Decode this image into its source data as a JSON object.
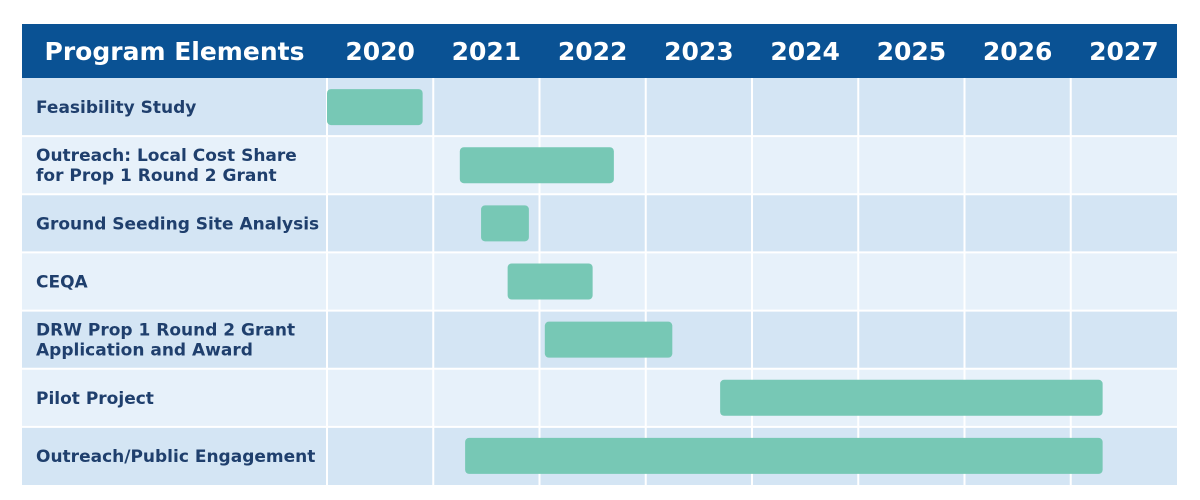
{
  "chart_data": {
    "type": "gantt",
    "header_label": "Program Elements",
    "years": [
      "2020",
      "2021",
      "2022",
      "2023",
      "2024",
      "2025",
      "2026",
      "2027"
    ],
    "tasks": [
      {
        "label_lines": [
          "Feasibility Study"
        ],
        "start": 2020.0,
        "end": 2020.9
      },
      {
        "label_lines": [
          "Outreach: Local Cost Share",
          "for Prop 1 Round 2 Grant"
        ],
        "start": 2021.25,
        "end": 2022.7
      },
      {
        "label_lines": [
          "Ground Seeding Site Analysis"
        ],
        "start": 2021.45,
        "end": 2021.9
      },
      {
        "label_lines": [
          "CEQA"
        ],
        "start": 2021.7,
        "end": 2022.5
      },
      {
        "label_lines": [
          "DRW Prop 1 Round 2 Grant",
          "Application and Award"
        ],
        "start": 2022.05,
        "end": 2023.25
      },
      {
        "label_lines": [
          "Pilot Project"
        ],
        "start": 2023.7,
        "end": 2027.3
      },
      {
        "label_lines": [
          "Outreach/Public Engagement"
        ],
        "start": 2021.3,
        "end": 2027.3
      }
    ],
    "colors": {
      "header": "#0a5294",
      "bar": "#77c8b5",
      "row_dark": "#d4e5f4",
      "row_light": "#e7f1fa",
      "grid": "#ffffff",
      "label": "#1f3f6d"
    }
  }
}
